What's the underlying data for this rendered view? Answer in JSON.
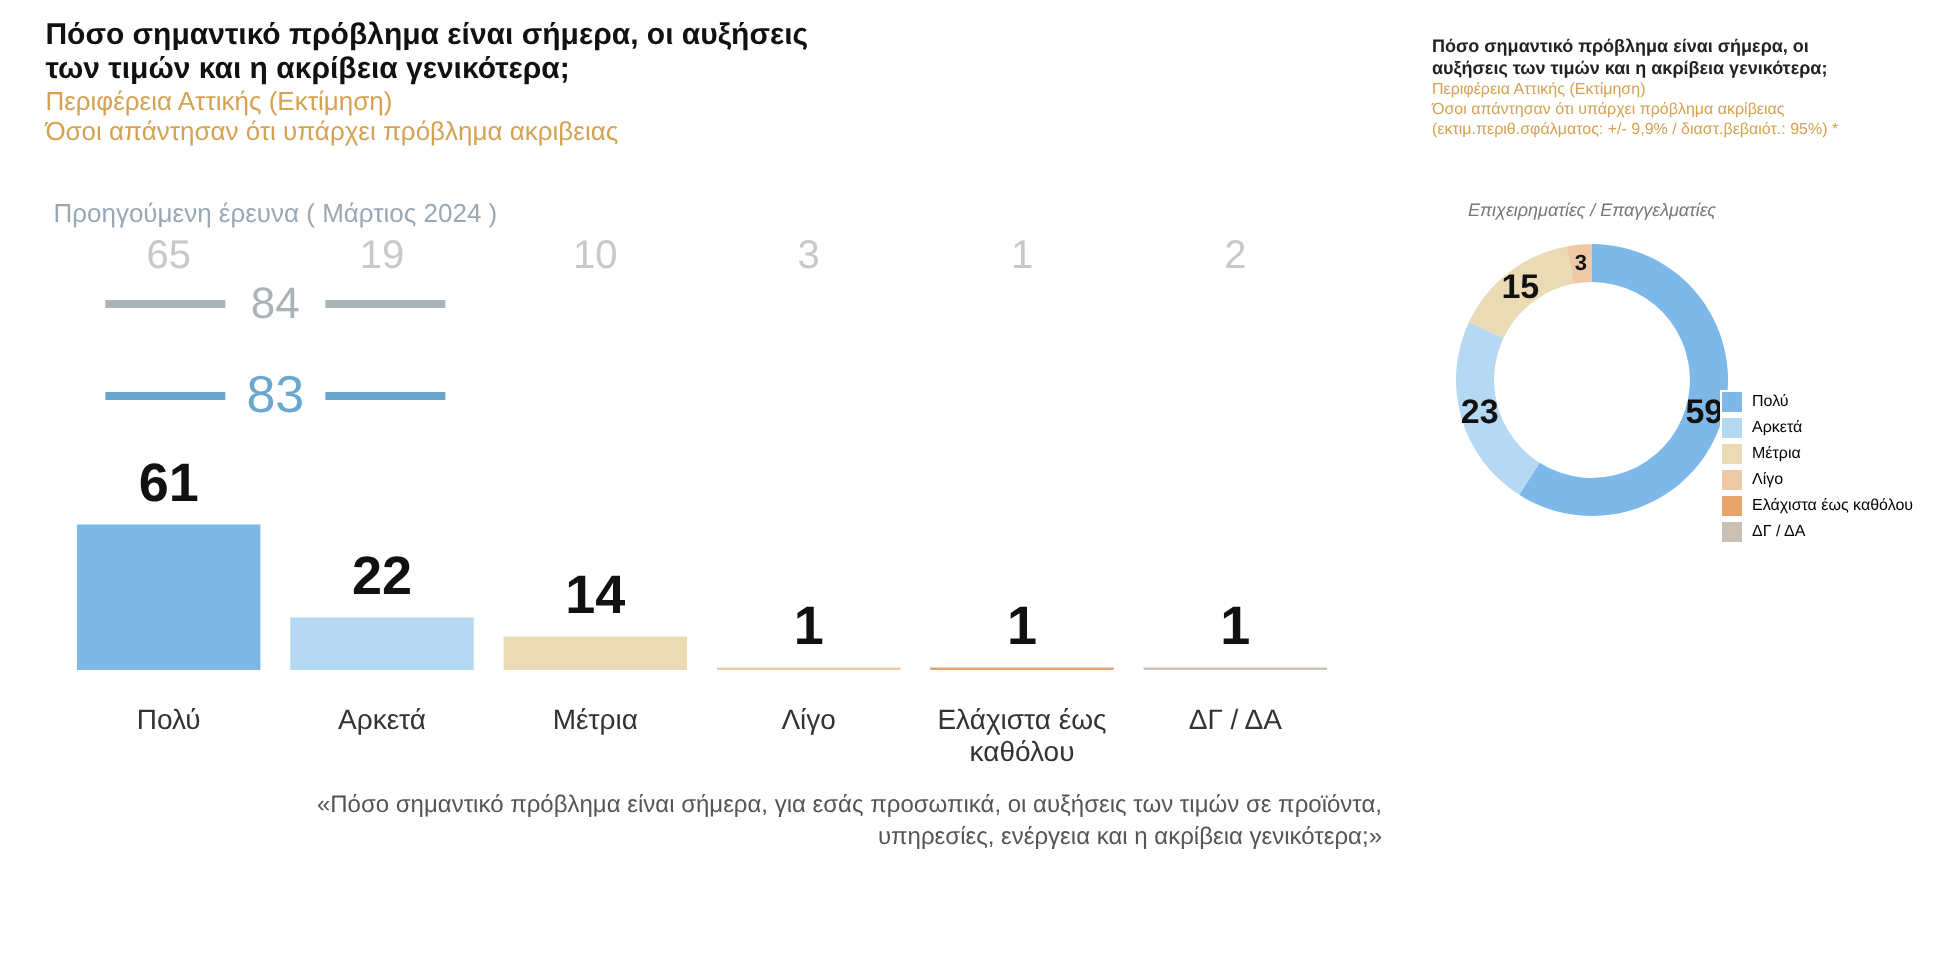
{
  "chart_data": [
    {
      "type": "bar",
      "title": "Πόσο σημαντικό πρόβλημα είναι σήμερα, οι αυξήσεις των τιμών και η ακρίβεια γενικότερα;",
      "subtitle": "Περιφέρεια Αττικής  (Εκτίμηση)",
      "categories": [
        "Πολύ",
        "Αρκετά",
        "Μέτρια",
        "Λίγο",
        "Ελάχιστα έως καθόλου",
        "ΔΓ / ΔΑ"
      ],
      "values": [
        61,
        22,
        14,
        1,
        1,
        1
      ],
      "colors": [
        "#7db8e8",
        "#b5d8f3",
        "#eadbb5",
        "#efc9a6",
        "#eaa368",
        "#c9c1b6"
      ],
      "data_labels": true,
      "annotations": [
        "Όσοι απάντησαν ότι υπάρχει πρόβλημα ακριβειας",
        "Προηγούμενη έρευνα ( Μάρτιος 2024 )",
        "65",
        "19",
        "10",
        "3",
        "1",
        "2",
        "84",
        "83",
        "«Πόσο σημαντικό πρόβλημα είναι σήμερα, για εσάς προσωπικά, οι αυξήσεις των τιμών σε προϊόντα, υπηρεσίες, ενέργεια και η ακρίβεια γενικότερα;»"
      ]
    },
    {
      "type": "donut",
      "title": "Πόσο σημαντικό πρόβλημα είναι σήμερα, οι αυξήσεις των τιμών και η ακρίβεια γενικότερα;",
      "subtitle": "Περιφέρεια Αττικής  (Εκτίμηση)",
      "categories": [
        "Πολύ",
        "Αρκετά",
        "Μέτρια",
        "Λίγο",
        "Ελάχιστα έως καθόλου",
        "ΔΓ / ΔΑ"
      ],
      "values": [
        59,
        23,
        15,
        3,
        0,
        0
      ],
      "colors": [
        "#7db8e8",
        "#b5d8f3",
        "#eadbb5",
        "#efc9a6",
        "#eaa368",
        "#c9c1b6"
      ],
      "value_labels": [
        "59",
        "23",
        "15",
        "3",
        null,
        null
      ],
      "legend": "right",
      "annotations": [
        "Όσοι απάντησαν ότι υπάρχει πρόβλημα ακρίβειας",
        "(εκτιμ.περιθ.σφάλματος: +/- 9,9% / διαστ.βεβαιότ.: 95%) *",
        "Επιχειρηματίες / Επαγγελματίες"
      ]
    }
  ]
}
